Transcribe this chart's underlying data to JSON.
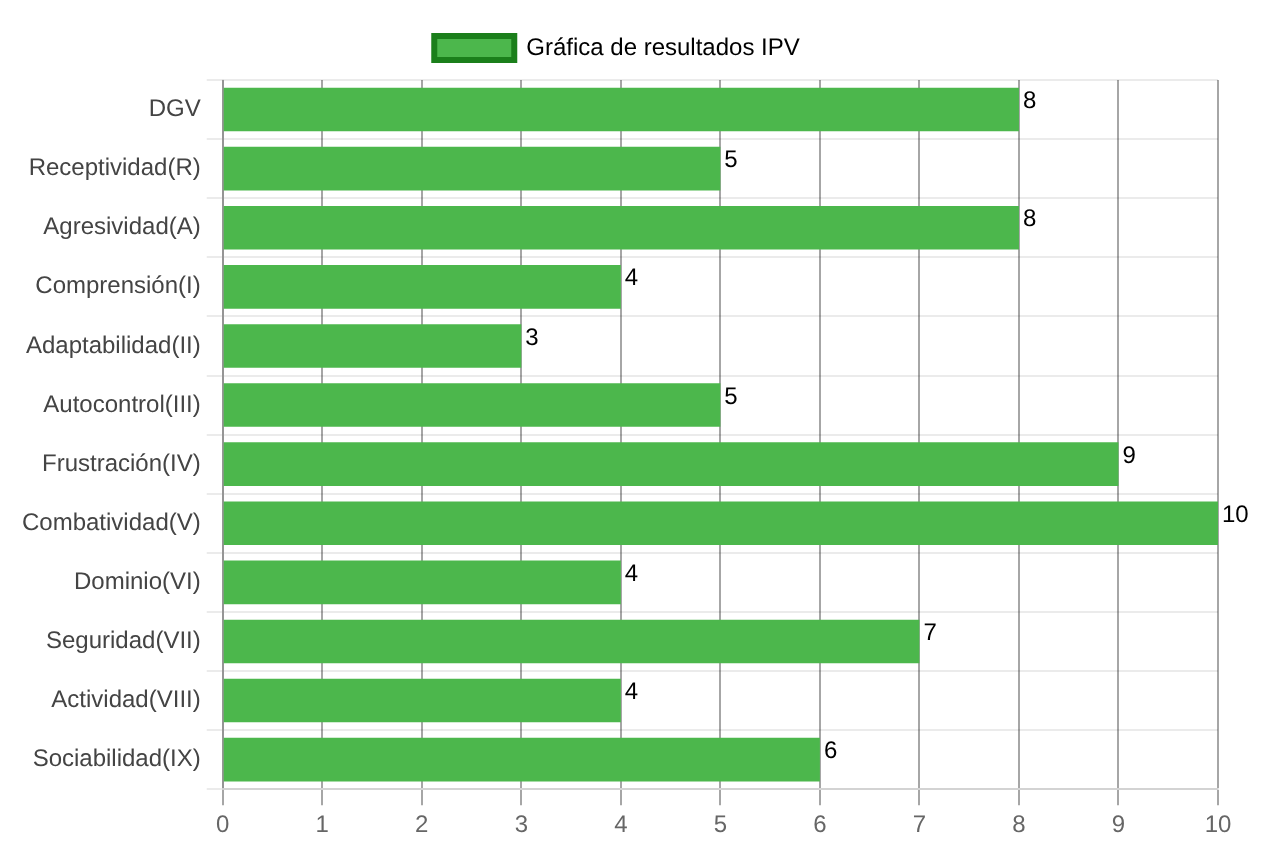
{
  "chart_data": {
    "type": "bar",
    "orientation": "horizontal",
    "categories": [
      "DGV",
      "Receptividad(R)",
      "Agresividad(A)",
      "Comprensión(I)",
      "Adaptabilidad(II)",
      "Autocontrol(III)",
      "Frustración(IV)",
      "Combatividad(V)",
      "Dominio(VI)",
      "Seguridad(VII)",
      "Actividad(VIII)",
      "Sociabilidad(IX)"
    ],
    "series": [
      {
        "name": "Gráfica de resultados IPV",
        "color": "#4cb74c",
        "values": [
          8,
          5,
          8,
          4,
          3,
          5,
          9,
          10,
          4,
          7,
          4,
          6
        ]
      }
    ],
    "xlim": [
      0,
      10
    ],
    "xticks": [
      0,
      1,
      2,
      3,
      4,
      5,
      6,
      7,
      8,
      9,
      10
    ],
    "grid": true,
    "legend": "top",
    "data_labels": true
  }
}
